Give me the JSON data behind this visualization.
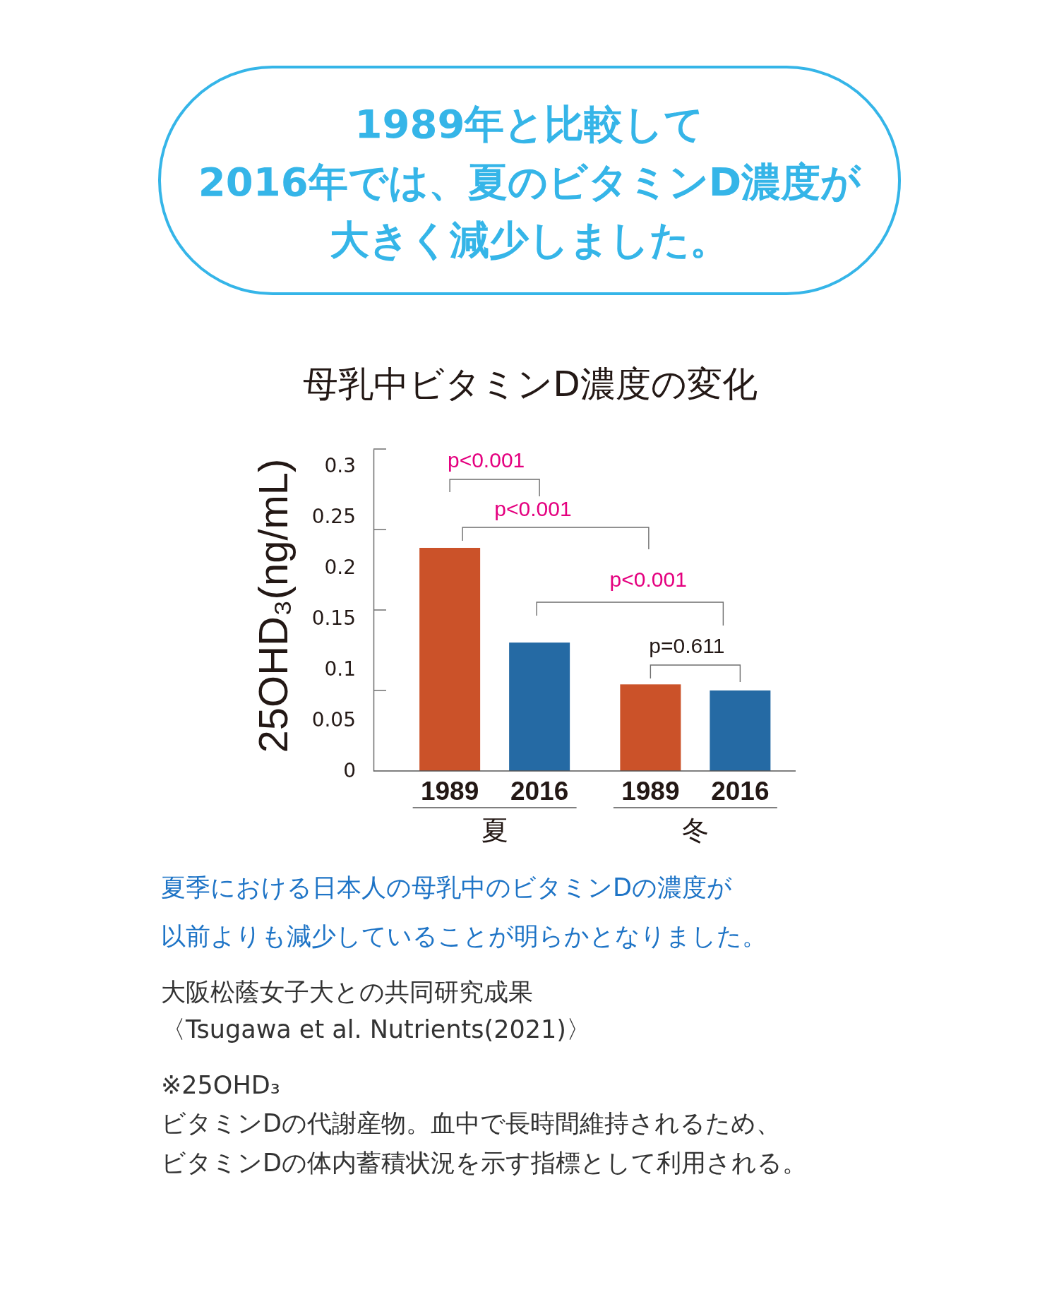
{
  "chart_data": {
    "type": "bar",
    "title": "1989年と比較して2016年では、夏のビタミンD濃度が大きく減少しました。",
    "subtitle": "母乳中ビタミンD濃度の変化",
    "ylabel": "25OHD₃(ng/mL)",
    "categories": [
      "夏",
      "冬"
    ],
    "series": [
      {
        "name": "1989",
        "color": "#cb5229",
        "values": [
          0.219,
          0.085
        ]
      },
      {
        "name": "2016",
        "color": "#256aa4",
        "values": [
          0.126,
          0.079
        ]
      }
    ],
    "ylim": [
      0,
      0.316
    ],
    "yticks": [
      0,
      0.05,
      0.1,
      0.15,
      0.2,
      0.25,
      0.3
    ],
    "legend": false,
    "annotations": [
      "p<0.001",
      "p<0.001",
      "p<0.001",
      "p=0.611",
      "夏季における日本人の母乳中のビタミンDの濃度が以前よりも減少していることが明らかとなりました。",
      "大阪松蔭女子大との共同研究成果",
      "〈Tsugawa et al. Nutrients(2021)〉",
      "※25OHD₃",
      "ビタミンDの代謝産物。血中で長時間維持されるため、ビタミンDの体内蓄積状況を示す指標として利用される。"
    ]
  }
}
